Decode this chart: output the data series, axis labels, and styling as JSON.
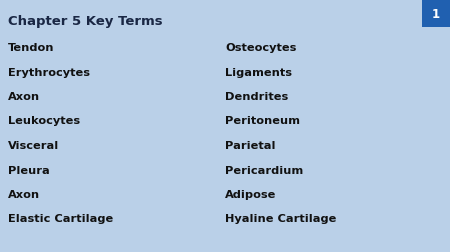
{
  "title": "Chapter 5 Key Terms",
  "page_number": "1",
  "background_color": "#bad0e8",
  "title_color": "#1a2744",
  "text_color": "#111111",
  "badge_color": "#2060b0",
  "badge_text_color": "#ffffff",
  "left_column": [
    "Tendon",
    "Erythrocytes",
    "Axon",
    "Leukocytes",
    "Visceral",
    "Pleura",
    "Axon",
    "Elastic Cartilage"
  ],
  "right_column": [
    "Osteocytes",
    "Ligaments",
    "Dendrites",
    "Peritoneum",
    "Parietal",
    "Pericardium",
    "Adipose",
    "Hyaline Cartilage"
  ],
  "title_fontsize": 9.5,
  "body_fontsize": 8.2,
  "page_number_fontsize": 8.5
}
